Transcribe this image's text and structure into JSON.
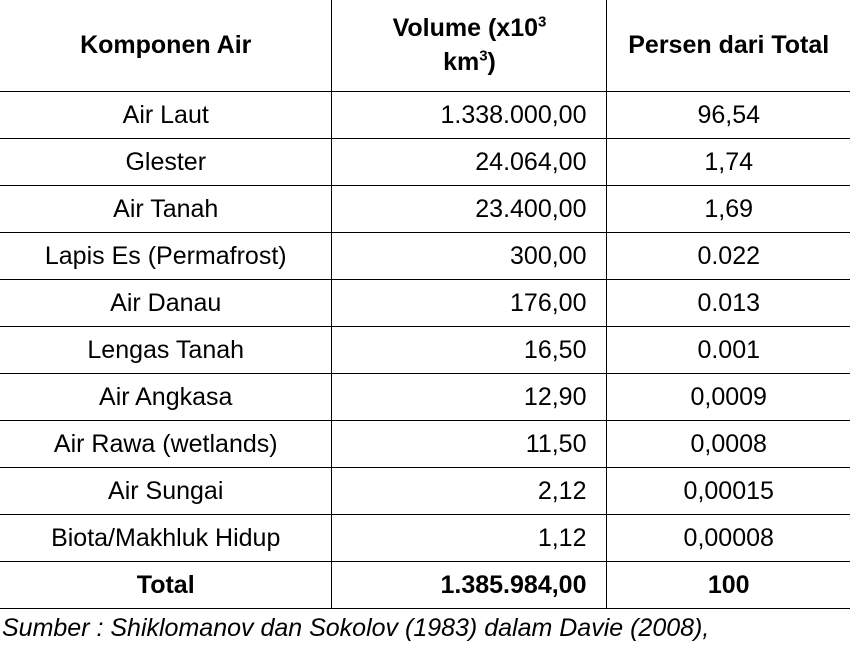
{
  "table": {
    "headers": {
      "component": "Komponen Air",
      "volume_prefix": "Volume (x10",
      "volume_exp": "3",
      "volume_unit": "km",
      "volume_unit_exp": "3",
      "volume_suffix": ")",
      "percent": "Persen dari Total"
    },
    "rows": [
      {
        "name": "Air Laut",
        "volume": "1.338.000,00",
        "percent": "96,54"
      },
      {
        "name": "Glester",
        "volume": "24.064,00",
        "percent": "1,74"
      },
      {
        "name": "Air Tanah",
        "volume": "23.400,00",
        "percent": "1,69"
      },
      {
        "name": "Lapis Es (Permafrost)",
        "volume": "300,00",
        "percent": "0.022"
      },
      {
        "name": "Air Danau",
        "volume": "176,00",
        "percent": "0.013"
      },
      {
        "name": "Lengas Tanah",
        "volume": "16,50",
        "percent": "0.001"
      },
      {
        "name": "Air Angkasa",
        "volume": "12,90",
        "percent": "0,0009"
      },
      {
        "name": "Air Rawa (wetlands)",
        "volume": "11,50",
        "percent": "0,0008"
      },
      {
        "name": "Air Sungai",
        "volume": "2,12",
        "percent": "0,00015"
      },
      {
        "name": "Biota/Makhluk Hidup",
        "volume": "1,12",
        "percent": "0,00008"
      }
    ],
    "total": {
      "label": "Total",
      "volume": "1.385.984,00",
      "percent": "100"
    }
  },
  "caption": "Sumber : Shiklomanov dan Sokolov (1983) dalam Davie (2008),"
}
